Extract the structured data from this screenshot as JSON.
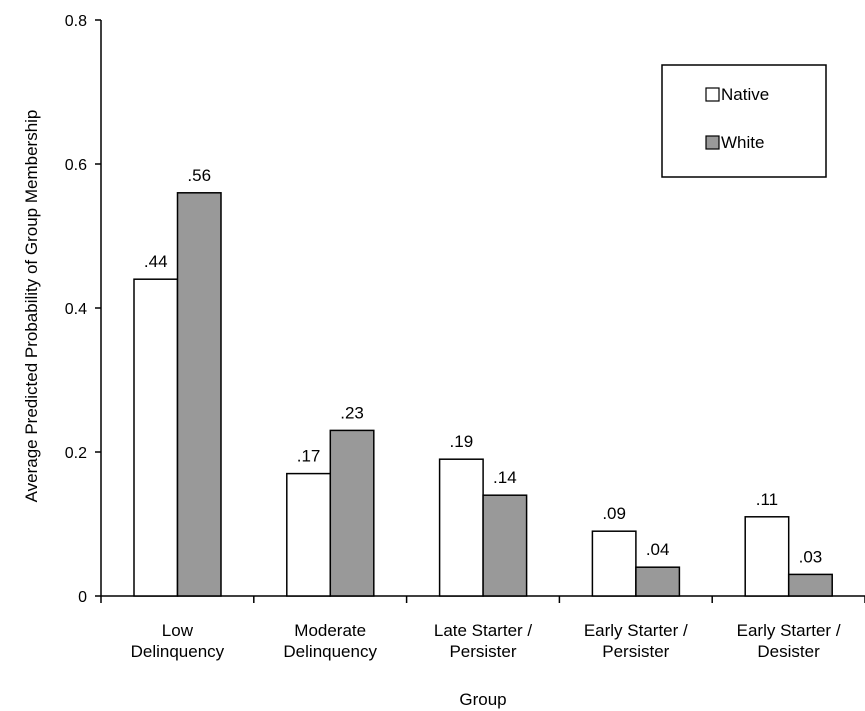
{
  "chart_data": {
    "type": "bar",
    "title": "",
    "xlabel": "Group",
    "ylabel": "Average Predicted Probability of Group Membership",
    "ylim": [
      0,
      0.8
    ],
    "yticks": [
      {
        "value": 0,
        "label": "0"
      },
      {
        "value": 0.2,
        "label": "0.2"
      },
      {
        "value": 0.4,
        "label": "0.4"
      },
      {
        "value": 0.6,
        "label": "0.6"
      },
      {
        "value": 0.8,
        "label": "0.8"
      }
    ],
    "grid": false,
    "legend_position": "top-right",
    "categories": [
      [
        "Low",
        "Delinquency"
      ],
      [
        "Moderate",
        "Delinquency"
      ],
      [
        "Late Starter /",
        "Persister"
      ],
      [
        "Early Starter /",
        "Persister"
      ],
      [
        "Early Starter /",
        "Desister"
      ]
    ],
    "series": [
      {
        "name": "Native",
        "color": "#ffffff",
        "values": [
          0.44,
          0.17,
          0.19,
          0.09,
          0.11
        ],
        "labels": [
          ".44",
          ".17",
          ".19",
          ".09",
          ".11"
        ]
      },
      {
        "name": "White",
        "color": "#999999",
        "values": [
          0.56,
          0.23,
          0.14,
          0.04,
          0.03
        ],
        "labels": [
          ".56",
          ".23",
          ".14",
          ".04",
          ".03"
        ]
      }
    ]
  }
}
